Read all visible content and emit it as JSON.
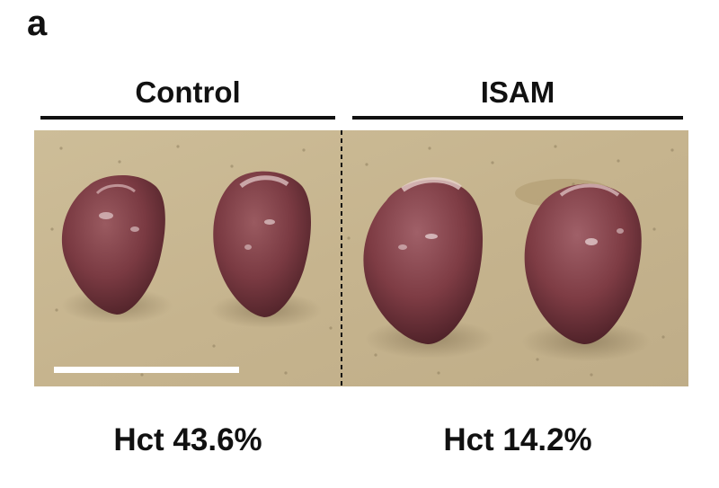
{
  "figure": {
    "panel_letter": "a",
    "groups": [
      {
        "label": "Control",
        "hct_label": "Hct 43.6%"
      },
      {
        "label": "ISAM",
        "hct_label": "Hct 14.2%"
      }
    ],
    "colors": {
      "background_paper": "#c8b690",
      "heart_tissue": "#7a3a40",
      "scale_bar": "#ffffff",
      "divider": "#111111"
    }
  }
}
